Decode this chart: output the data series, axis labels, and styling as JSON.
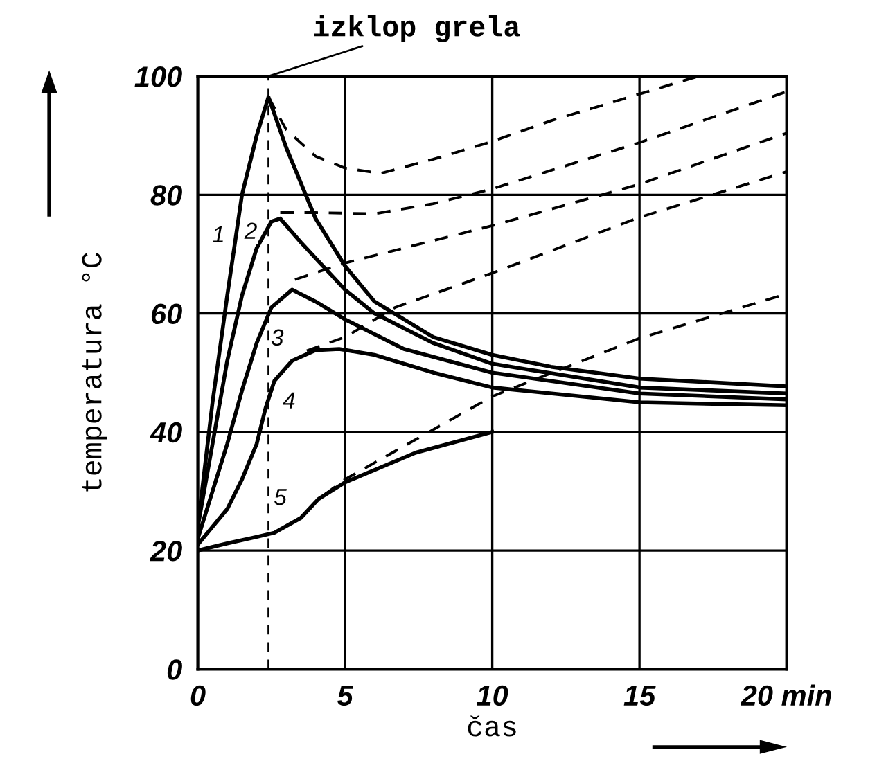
{
  "chart_data": {
    "type": "line",
    "xlabel": "čas",
    "ylabel": "temperatura °C",
    "xlim": [
      0,
      20
    ],
    "ylim": [
      0,
      100
    ],
    "xticks": [
      0,
      5,
      10,
      15,
      {
        "value": 20,
        "label": "20 min"
      }
    ],
    "yticks": [
      0,
      20,
      40,
      60,
      80,
      100
    ],
    "grid": true,
    "marker": "none",
    "series": [
      {
        "color": "#000000",
        "line_style": "solid",
        "x": [
          0,
          0.5,
          1,
          1.5,
          2,
          2.4,
          3,
          4,
          5,
          6,
          8,
          10,
          12,
          15,
          20
        ],
        "values": [
          24,
          45,
          63,
          80,
          90,
          96.5,
          88,
          76,
          68,
          62,
          56,
          53,
          51,
          49,
          47.7
        ]
      },
      {
        "color": "#000000",
        "line_style": "solid",
        "x": [
          0,
          0.5,
          1,
          1.5,
          2,
          2.5,
          2.8,
          3.5,
          5,
          6,
          8,
          10,
          15,
          20
        ],
        "values": [
          24,
          38,
          52,
          63,
          71,
          75.5,
          76,
          72,
          64,
          60,
          55,
          51.5,
          47.5,
          46.5
        ]
      },
      {
        "color": "#000000",
        "line_style": "solid",
        "x": [
          0,
          1,
          1.5,
          2,
          2.5,
          3.2,
          4,
          5,
          7,
          10,
          15,
          20
        ],
        "values": [
          22,
          38,
          47,
          55,
          61,
          64,
          62,
          59,
          54,
          50,
          46.5,
          45.5
        ]
      },
      {
        "color": "#000000",
        "line_style": "solid",
        "x": [
          0,
          0.5,
          1,
          1.5,
          2,
          2.3,
          2.6,
          3.2,
          4,
          4.8,
          6,
          8,
          10,
          15,
          20
        ],
        "values": [
          21,
          24,
          27,
          32,
          38,
          44,
          48.6,
          52,
          53.8,
          54,
          53,
          50,
          47.5,
          45,
          44.5
        ]
      },
      {
        "color": "#000000",
        "line_style": "solid",
        "x": [
          0,
          1,
          2,
          2.6,
          3.5,
          4.1,
          5,
          7.4,
          10
        ],
        "values": [
          20,
          21.2,
          22.3,
          23,
          25.5,
          28.7,
          31.5,
          36.5,
          40
        ]
      },
      {
        "color": "#000000",
        "line_style": "dashed",
        "x": [
          2.4,
          3,
          4,
          5,
          6.2,
          8,
          10,
          12,
          15,
          17
        ],
        "values": [
          96.5,
          91,
          86.5,
          84.5,
          83.6,
          86,
          89,
          92.5,
          97,
          100
        ]
      },
      {
        "color": "#000000",
        "line_style": "dashed",
        "x": [
          2.8,
          4,
          6,
          8,
          10,
          15,
          20
        ],
        "values": [
          77,
          77,
          76.8,
          78.5,
          81,
          88.8,
          97.4
        ]
      },
      {
        "color": "#000000",
        "line_style": "dashed",
        "x": [
          3.3,
          5,
          10,
          15,
          20
        ],
        "values": [
          65.7,
          68.5,
          74.8,
          81.8,
          90.4
        ]
      },
      {
        "color": "#000000",
        "line_style": "dashed",
        "x": [
          3.7,
          5,
          6.7,
          10,
          15,
          20
        ],
        "values": [
          53.7,
          56,
          61,
          66.8,
          76.2,
          83.9
        ]
      },
      {
        "color": "#000000",
        "line_style": "dashed",
        "x": [
          4.3,
          5,
          10,
          15,
          20
        ],
        "values": [
          29.4,
          32,
          46,
          55.8,
          63.3
        ]
      }
    ],
    "ref_lines": [
      {
        "axis": "x",
        "value": 2.4,
        "label": "izklop grela",
        "color": "#000000",
        "line_style": "dashed"
      }
    ],
    "annotations": [
      {
        "text": "1",
        "x": 0.7,
        "y": 73
      },
      {
        "text": "2",
        "x": 1.8,
        "y": 73.6
      },
      {
        "text": "3",
        "x": 2.7,
        "y": 55.6
      },
      {
        "text": "4",
        "x": 3.1,
        "y": 45
      },
      {
        "text": "5",
        "x": 2.8,
        "y": 28.7
      }
    ]
  }
}
